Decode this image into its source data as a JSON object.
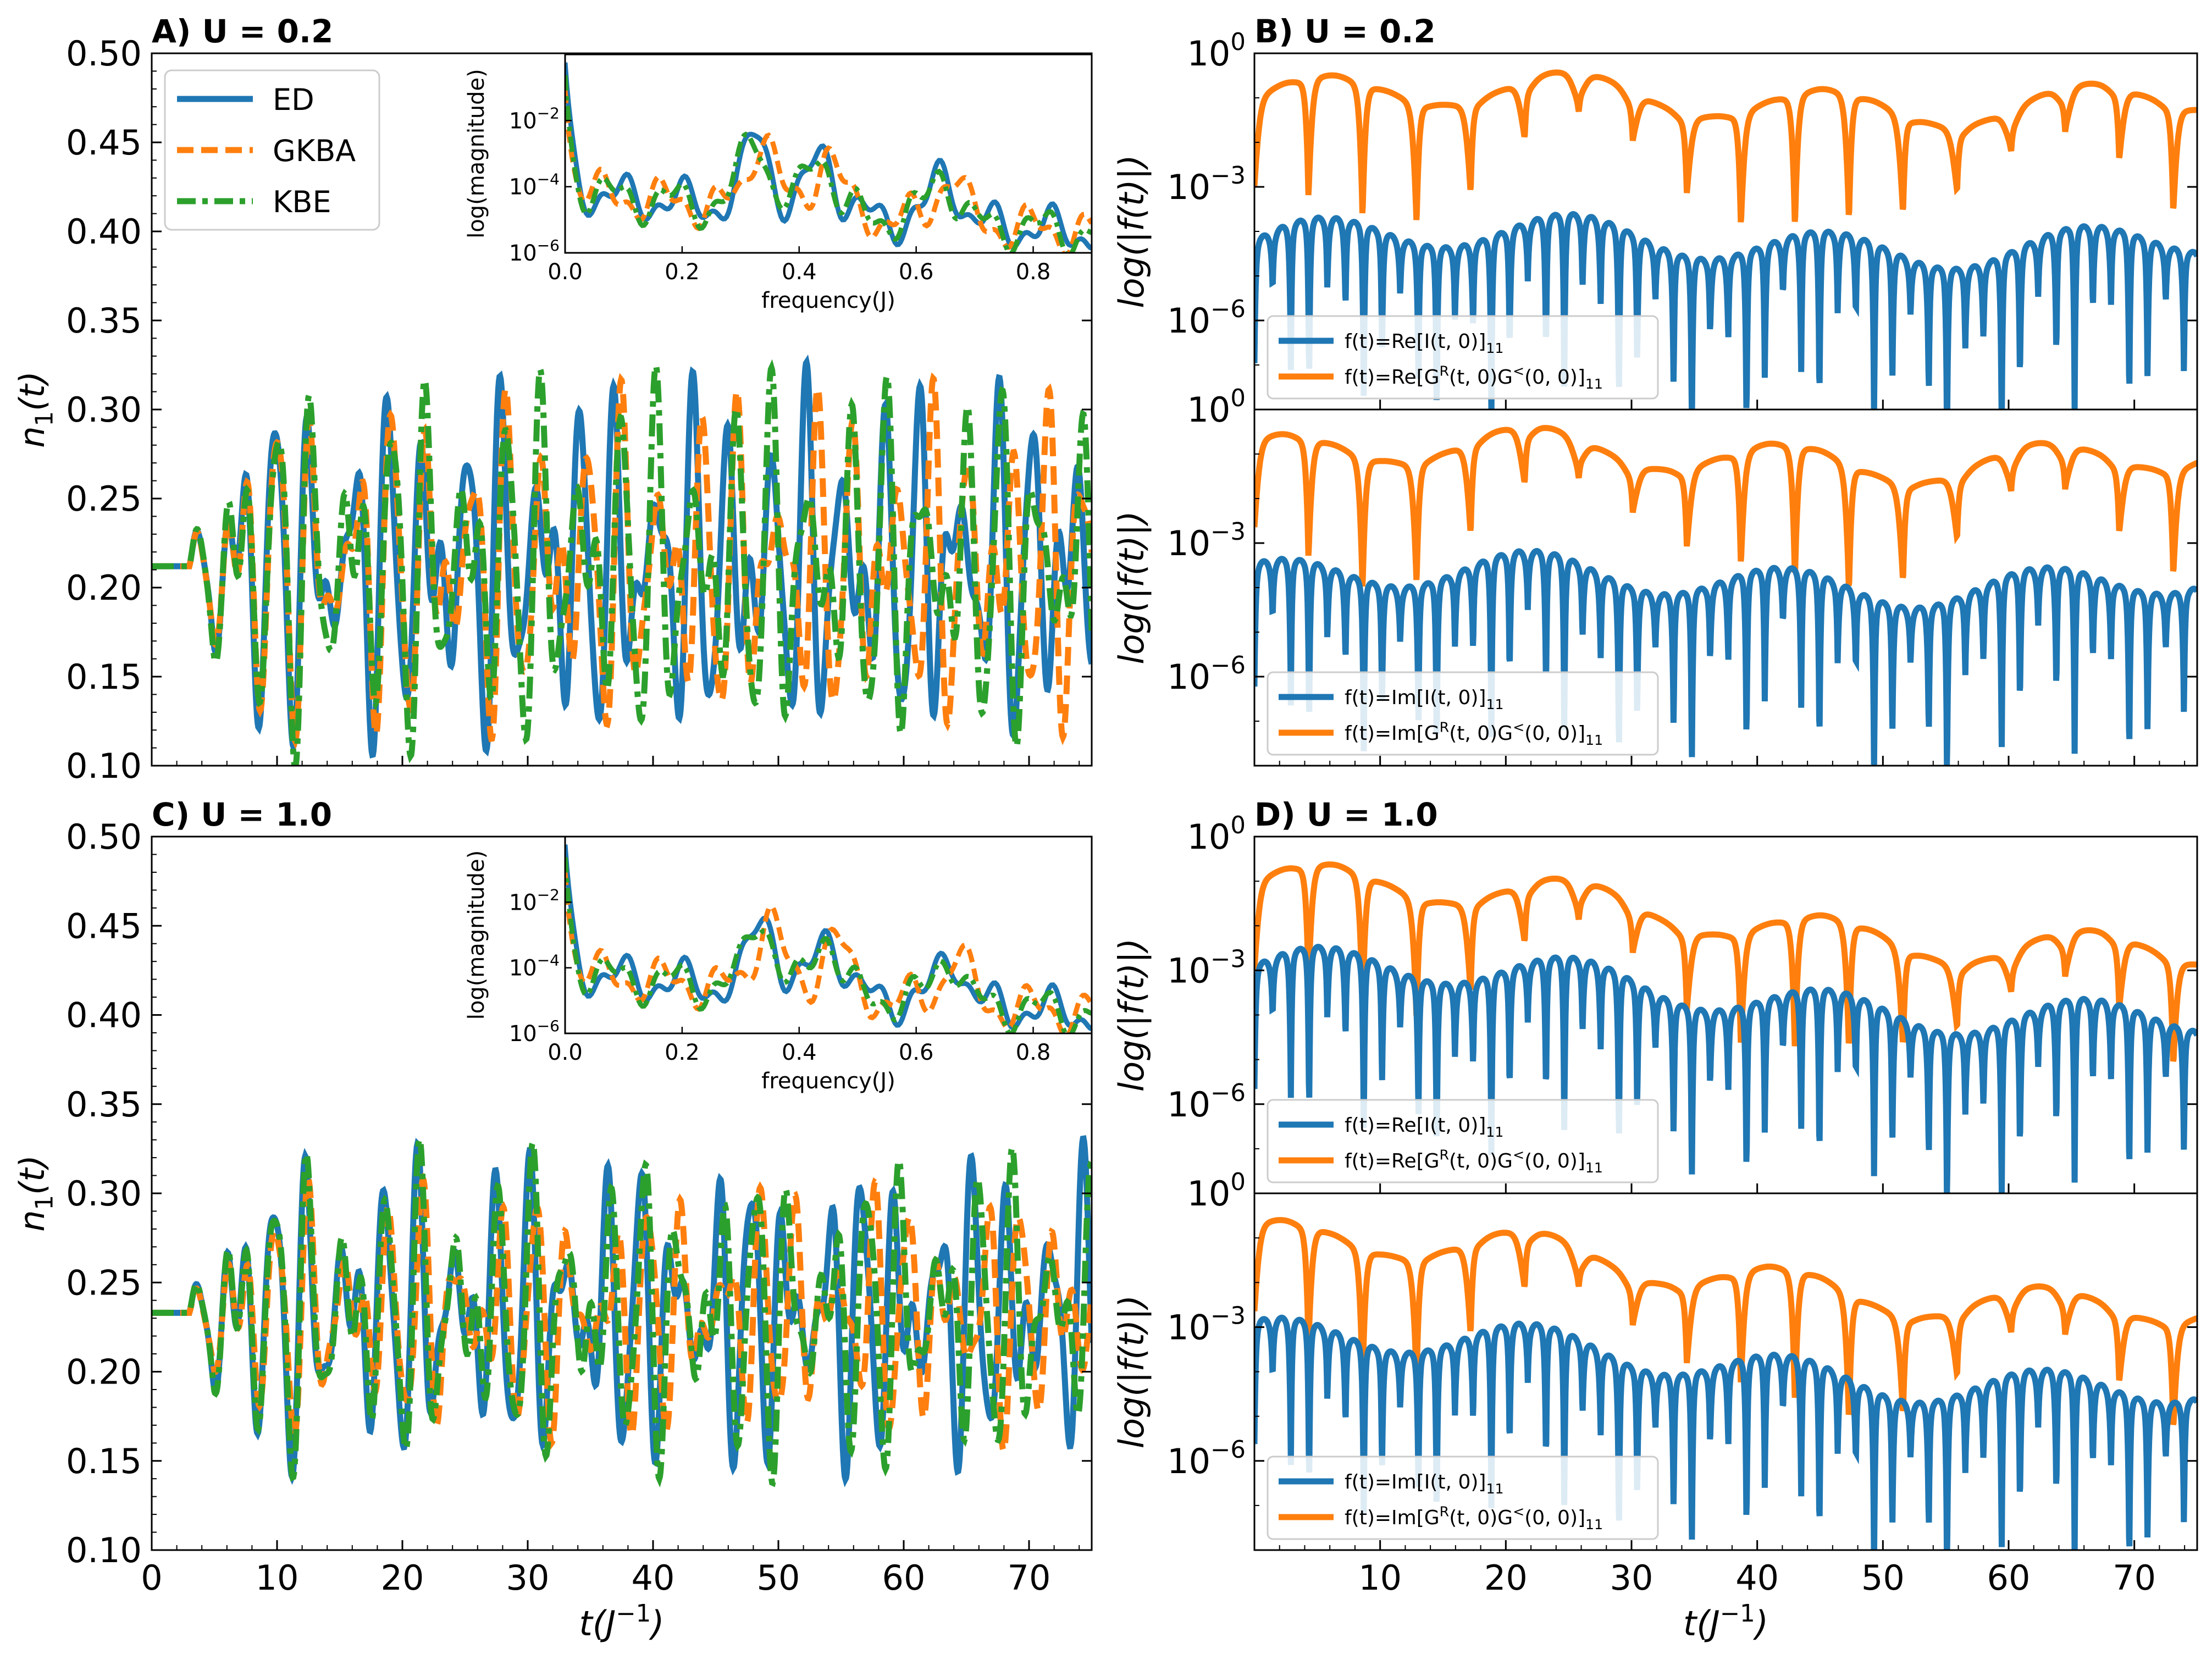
{
  "figure": {
    "colors": {
      "ED": "#1f77b4",
      "GKBA": "#ff7f0e",
      "KBE": "#2ca02c",
      "I_curve": "#1f77b4",
      "GG_curve": "#ff7f0e"
    }
  },
  "chart_data": [
    {
      "id": "A",
      "type": "line",
      "title": "A)  U = 0.2",
      "xlabel": "",
      "ylabel": "n_1(t)",
      "xlim": [
        0,
        75
      ],
      "ylim": [
        0.1,
        0.5
      ],
      "xticks": [
        "0",
        "10",
        "20",
        "30",
        "40",
        "50",
        "60",
        "70"
      ],
      "yticks": [
        "0.10",
        "0.15",
        "0.20",
        "0.25",
        "0.30",
        "0.35",
        "0.40",
        "0.45",
        "0.50"
      ],
      "legend": [
        "ED",
        "GKBA",
        "KBE"
      ],
      "legend_position": "top-left",
      "series_model": {
        "baseline": 0.212,
        "pulse_start": 3.0,
        "note": "oscillating site occupation after pulse, amplitude ~0.05-0.1, frequencies ~0.33J and ~0.45J",
        "ED": {
          "freqs": [
            0.33,
            0.45,
            0.65
          ],
          "amp": [
            0.055,
            0.04,
            0.02
          ]
        },
        "GKBA": {
          "freqs": [
            0.325,
            0.44,
            0.64
          ],
          "amp": [
            0.05,
            0.04,
            0.018
          ]
        },
        "KBE": {
          "freqs": [
            0.328,
            0.435,
            0.645
          ],
          "amp": [
            0.055,
            0.042,
            0.02
          ]
        }
      },
      "inset": {
        "xlabel": "frequency(J)",
        "ylabel": "log(magnitude)",
        "xlim": [
          0.0,
          0.9
        ],
        "ylim_log10": [
          -6,
          0
        ],
        "xticks": [
          "0.0",
          "0.2",
          "0.4",
          "0.6",
          "0.8"
        ],
        "yticks": [
          "10^-6",
          "10^-4",
          "10^-2"
        ],
        "peaks": [
          0.33,
          0.44,
          0.65
        ]
      }
    },
    {
      "id": "B",
      "type": "line",
      "title": "B)  U = 0.2",
      "subpanels": [
        {
          "ylabel": "log(|f(t)|)",
          "yscale": "log",
          "ylim_log10": [
            -8,
            0
          ],
          "yticks": [
            "10^0",
            "10^-3",
            "10^-6"
          ],
          "legend": [
            "f(t)=Re[I(t, 0)]_11",
            "f(t)=Re[G^R(t, 0)G^<(0, 0)]_11"
          ],
          "legend_position": "bottom-left",
          "curve_levels_log10": {
            "I": -4.2,
            "GG": -1.0
          }
        },
        {
          "ylabel": "log(|f(t)|)",
          "yscale": "log",
          "ylim_log10": [
            -8,
            0
          ],
          "yticks": [
            "10^0",
            "10^-3",
            "10^-6"
          ],
          "legend": [
            "f(t)=Im[I(t, 0)]_11",
            "f(t)=Im[G^R(t, 0)G^<(0, 0)]_11"
          ],
          "legend_position": "bottom-left",
          "curve_levels_log10": {
            "I": -3.8,
            "GG": -1.0
          }
        }
      ],
      "xlim": [
        0,
        75
      ]
    },
    {
      "id": "C",
      "type": "line",
      "title": "C)  U = 1.0",
      "xlabel": "t(J^-1)",
      "ylabel": "n_1(t)",
      "xlim": [
        0,
        75
      ],
      "ylim": [
        0.1,
        0.5
      ],
      "xticks": [
        "0",
        "10",
        "20",
        "30",
        "40",
        "50",
        "60",
        "70"
      ],
      "yticks": [
        "0.10",
        "0.15",
        "0.20",
        "0.25",
        "0.30",
        "0.35",
        "0.40",
        "0.45",
        "0.50"
      ],
      "series_model": {
        "baseline": 0.233,
        "pulse_start": 3.0,
        "ED": {
          "freqs": [
            0.34,
            0.45,
            0.66
          ],
          "amp": [
            0.045,
            0.035,
            0.02
          ]
        },
        "GKBA": {
          "freqs": [
            0.335,
            0.44,
            0.64
          ],
          "amp": [
            0.035,
            0.03,
            0.015
          ]
        },
        "KBE": {
          "freqs": [
            0.338,
            0.445,
            0.655
          ],
          "amp": [
            0.045,
            0.035,
            0.02
          ]
        }
      },
      "inset": {
        "xlabel": "frequency(J)",
        "ylabel": "log(magnitude)",
        "xlim": [
          0.0,
          0.9
        ],
        "ylim_log10": [
          -6,
          0
        ],
        "xticks": [
          "0.0",
          "0.2",
          "0.4",
          "0.6",
          "0.8"
        ],
        "yticks": [
          "10^-6",
          "10^-4",
          "10^-2"
        ],
        "peaks": [
          0.34,
          0.45,
          0.66
        ]
      }
    },
    {
      "id": "D",
      "type": "line",
      "title": "D)  U = 1.0",
      "xlabel": "t(J^-1)",
      "xticks": [
        "10",
        "20",
        "30",
        "40",
        "50",
        "60",
        "70"
      ],
      "subpanels": [
        {
          "ylabel": "log(|f(t)|)",
          "yscale": "log",
          "ylim_log10": [
            -8,
            0
          ],
          "yticks": [
            "10^0",
            "10^-3",
            "10^-6"
          ],
          "legend": [
            "f(t)=Re[I(t, 0)]_11",
            "f(t)=Re[G^R(t, 0)G^<(0, 0)]_11"
          ],
          "legend_position": "bottom-left",
          "curve_levels_log10": {
            "I": -2.9,
            "GG": -1.0
          }
        },
        {
          "ylabel": "log(|f(t)|)",
          "yscale": "log",
          "ylim_log10": [
            -8,
            0
          ],
          "yticks": [
            "10^0",
            "10^-3",
            "10^-6"
          ],
          "legend": [
            "f(t)=Im[I(t, 0)]_11",
            "f(t)=Im[G^R(t, 0)G^<(0, 0)]_11"
          ],
          "legend_position": "bottom-left",
          "curve_levels_log10": {
            "I": -3.2,
            "GG": -1.0
          }
        }
      ],
      "xlim": [
        0,
        75
      ]
    }
  ]
}
